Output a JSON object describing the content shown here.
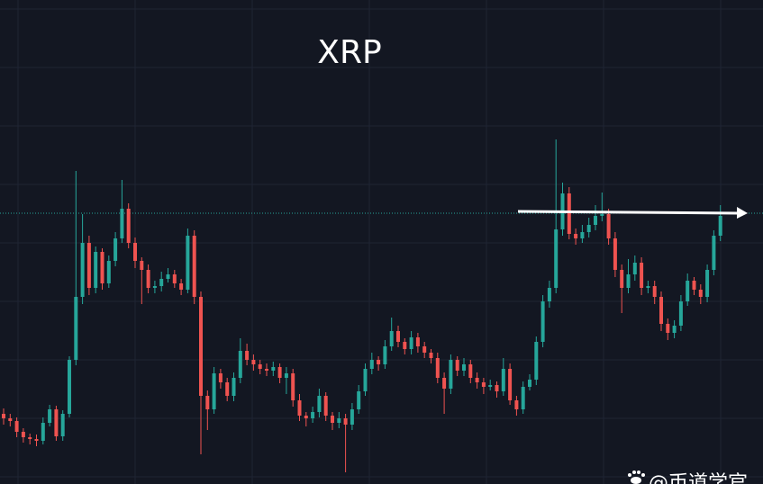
{
  "chart_data": {
    "type": "candlestick",
    "title": "XRP",
    "watermark": "@币道学官",
    "up_color": "#26a69a",
    "down_color": "#ef5350",
    "ylim": [
      0,
      538
    ],
    "price_line": 301,
    "ohlc": [
      [
        78,
        84,
        66,
        73
      ],
      [
        73,
        78,
        64,
        70
      ],
      [
        70,
        74,
        52,
        58
      ],
      [
        58,
        62,
        46,
        52
      ],
      [
        52,
        56,
        44,
        50
      ],
      [
        50,
        55,
        42,
        48
      ],
      [
        48,
        74,
        44,
        68
      ],
      [
        68,
        88,
        64,
        83
      ],
      [
        83,
        87,
        48,
        53
      ],
      [
        53,
        82,
        48,
        78
      ],
      [
        78,
        142,
        74,
        138
      ],
      [
        138,
        348,
        132,
        208
      ],
      [
        208,
        300,
        200,
        268
      ],
      [
        268,
        276,
        210,
        218
      ],
      [
        218,
        264,
        212,
        258
      ],
      [
        258,
        262,
        216,
        223
      ],
      [
        223,
        254,
        218,
        248
      ],
      [
        248,
        280,
        242,
        273
      ],
      [
        273,
        338,
        268,
        306
      ],
      [
        306,
        312,
        262,
        268
      ],
      [
        268,
        274,
        240,
        248
      ],
      [
        248,
        252,
        200,
        238
      ],
      [
        238,
        244,
        212,
        218
      ],
      [
        218,
        226,
        212,
        220
      ],
      [
        220,
        236,
        214,
        228
      ],
      [
        228,
        240,
        224,
        233
      ],
      [
        233,
        238,
        218,
        223
      ],
      [
        223,
        228,
        210,
        216
      ],
      [
        216,
        284,
        212,
        276
      ],
      [
        276,
        282,
        200,
        208
      ],
      [
        208,
        214,
        33,
        98
      ],
      [
        98,
        104,
        60,
        83
      ],
      [
        83,
        130,
        78,
        123
      ],
      [
        123,
        128,
        106,
        113
      ],
      [
        113,
        118,
        92,
        98
      ],
      [
        98,
        124,
        92,
        118
      ],
      [
        118,
        162,
        112,
        148
      ],
      [
        148,
        156,
        132,
        138
      ],
      [
        138,
        144,
        126,
        133
      ],
      [
        133,
        138,
        122,
        128
      ],
      [
        128,
        134,
        120,
        126
      ],
      [
        126,
        136,
        120,
        130
      ],
      [
        130,
        134,
        112,
        118
      ],
      [
        118,
        130,
        100,
        123
      ],
      [
        123,
        128,
        86,
        93
      ],
      [
        93,
        100,
        70,
        76
      ],
      [
        76,
        80,
        64,
        73
      ],
      [
        73,
        86,
        68,
        80
      ],
      [
        80,
        106,
        74,
        98
      ],
      [
        98,
        102,
        70,
        76
      ],
      [
        76,
        80,
        60,
        68
      ],
      [
        68,
        80,
        62,
        73
      ],
      [
        73,
        78,
        13,
        66
      ],
      [
        66,
        90,
        60,
        83
      ],
      [
        83,
        110,
        78,
        103
      ],
      [
        103,
        134,
        98,
        128
      ],
      [
        128,
        146,
        122,
        138
      ],
      [
        138,
        142,
        126,
        133
      ],
      [
        133,
        160,
        128,
        153
      ],
      [
        153,
        185,
        148,
        170
      ],
      [
        170,
        176,
        152,
        158
      ],
      [
        158,
        162,
        144,
        150
      ],
      [
        150,
        170,
        144,
        163
      ],
      [
        163,
        168,
        146,
        153
      ],
      [
        153,
        158,
        140,
        146
      ],
      [
        146,
        150,
        134,
        140
      ],
      [
        140,
        146,
        112,
        118
      ],
      [
        118,
        124,
        78,
        106
      ],
      [
        106,
        144,
        100,
        138
      ],
      [
        138,
        142,
        120,
        126
      ],
      [
        126,
        140,
        120,
        133
      ],
      [
        133,
        138,
        112,
        118
      ],
      [
        118,
        124,
        106,
        113
      ],
      [
        113,
        118,
        100,
        108
      ],
      [
        108,
        116,
        104,
        110
      ],
      [
        110,
        114,
        96,
        103
      ],
      [
        103,
        140,
        98,
        128
      ],
      [
        128,
        134,
        88,
        93
      ],
      [
        93,
        98,
        76,
        83
      ],
      [
        83,
        114,
        78,
        108
      ],
      [
        108,
        122,
        104,
        116
      ],
      [
        116,
        164,
        110,
        158
      ],
      [
        158,
        210,
        152,
        203
      ],
      [
        203,
        226,
        196,
        218
      ],
      [
        218,
        383,
        212,
        283
      ],
      [
        283,
        335,
        276,
        323
      ],
      [
        323,
        330,
        272,
        278
      ],
      [
        278,
        284,
        266,
        273
      ],
      [
        273,
        288,
        268,
        280
      ],
      [
        280,
        296,
        274,
        288
      ],
      [
        288,
        310,
        282,
        298
      ],
      [
        298,
        324,
        292,
        300
      ],
      [
        300,
        306,
        266,
        273
      ],
      [
        273,
        280,
        230,
        238
      ],
      [
        238,
        244,
        190,
        218
      ],
      [
        218,
        250,
        212,
        233
      ],
      [
        233,
        254,
        226,
        246
      ],
      [
        246,
        252,
        210,
        218
      ],
      [
        218,
        226,
        212,
        220
      ],
      [
        220,
        226,
        200,
        208
      ],
      [
        208,
        214,
        170,
        178
      ],
      [
        178,
        184,
        160,
        168
      ],
      [
        168,
        182,
        162,
        176
      ],
      [
        176,
        210,
        170,
        203
      ],
      [
        203,
        234,
        198,
        226
      ],
      [
        226,
        230,
        210,
        216
      ],
      [
        216,
        222,
        200,
        208
      ],
      [
        208,
        244,
        202,
        238
      ],
      [
        238,
        282,
        232,
        276
      ],
      [
        276,
        310,
        270,
        298
      ]
    ]
  }
}
